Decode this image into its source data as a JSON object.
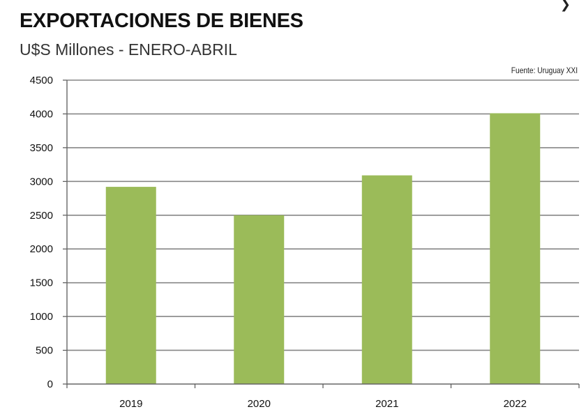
{
  "chart_data": {
    "type": "bar",
    "title": "EXPORTACIONES DE BIENES",
    "subtitle": "U$S Millones - ENERO-ABRIL",
    "source": "Fuente: Uruguay XXI",
    "categories": [
      "2019",
      "2020",
      "2021",
      "2022"
    ],
    "values": [
      2920,
      2500,
      3090,
      4010
    ],
    "ylim": [
      0,
      4500
    ],
    "yticks": [
      0,
      500,
      1000,
      1500,
      2000,
      2500,
      3000,
      3500,
      4000,
      4500
    ],
    "grid": true,
    "bar_color": "#9bbb59",
    "grid_color": "#868686",
    "xlabel": "",
    "ylabel": ""
  }
}
